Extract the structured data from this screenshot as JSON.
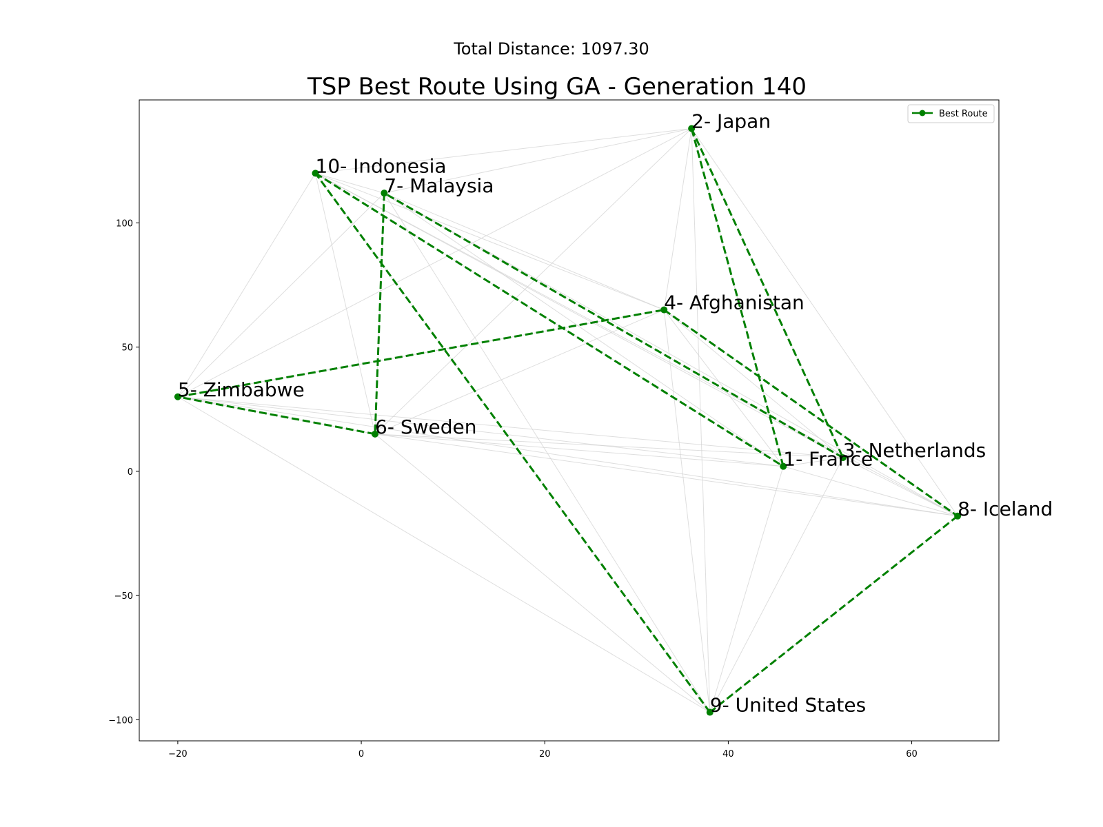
{
  "figure": {
    "suptitle": "Total Distance: 1097.30"
  },
  "chart_data": {
    "type": "line",
    "title": "TSP Best Route Using GA - Generation 140",
    "xlabel": "",
    "ylabel": "",
    "xlim": [
      -24.2,
      69.5
    ],
    "ylim": [
      -108.5,
      149.5
    ],
    "xticks": [
      -20,
      0,
      20,
      40,
      60
    ],
    "yticks": [
      -100,
      -50,
      0,
      50,
      100
    ],
    "grid": false,
    "legend": {
      "position": "top-right",
      "entries": [
        {
          "label": "Best Route",
          "color": "#008000"
        }
      ]
    },
    "cities": [
      {
        "id": 1,
        "label": "1- France",
        "x": 46,
        "y": 2
      },
      {
        "id": 2,
        "label": "2- Japan",
        "x": 36,
        "y": 138
      },
      {
        "id": 3,
        "label": "3- Netherlands",
        "x": 52.5,
        "y": 5.5
      },
      {
        "id": 4,
        "label": "4- Afghanistan",
        "x": 33,
        "y": 65
      },
      {
        "id": 5,
        "label": "5- Zimbabwe",
        "x": -20,
        "y": 30
      },
      {
        "id": 6,
        "label": "6- Sweden",
        "x": 1.5,
        "y": 15
      },
      {
        "id": 7,
        "label": "7- Malaysia",
        "x": 2.5,
        "y": 112
      },
      {
        "id": 8,
        "label": "8- Iceland",
        "x": 65,
        "y": -18
      },
      {
        "id": 9,
        "label": "9- United States",
        "x": 38,
        "y": -97
      },
      {
        "id": 10,
        "label": "10- Indonesia",
        "x": -5,
        "y": 120
      }
    ],
    "series": [
      {
        "name": "Best Route",
        "color": "#008000",
        "linestyle": "dashed",
        "marker": "circle",
        "route": [
          9,
          10,
          1,
          2,
          3,
          7,
          6,
          5,
          4,
          8,
          9
        ]
      }
    ],
    "background_edges": {
      "color": "#d3d3d3",
      "style": "all pairs"
    }
  }
}
